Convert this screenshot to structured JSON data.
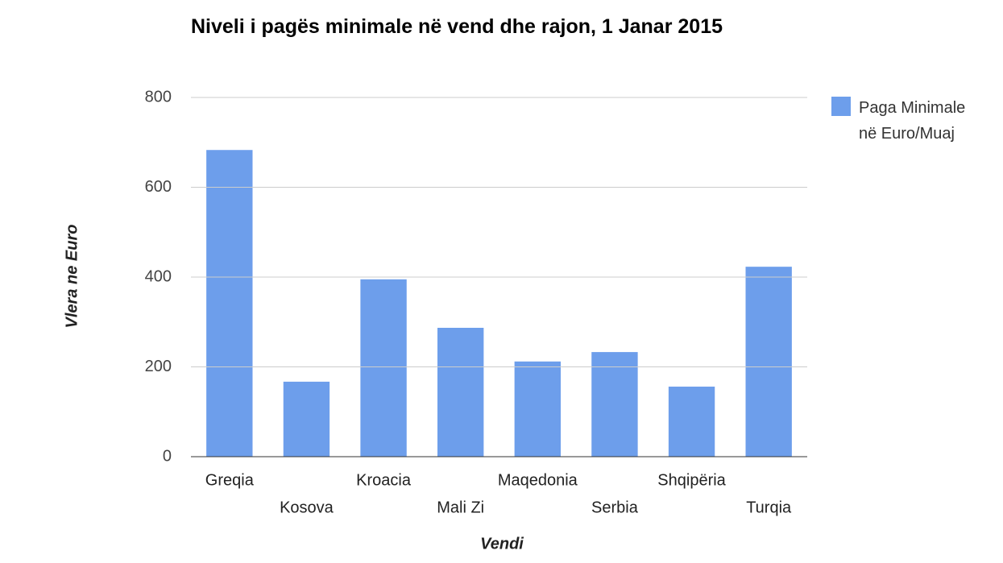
{
  "chart_data": {
    "type": "bar",
    "title": "Niveli i pagës minimale në vend dhe rajon, 1 Janar 2015",
    "x_label": "Vendi",
    "y_label": "Vlera ne Euro",
    "categories": [
      "Greqia",
      "Kosova",
      "Kroacia",
      "Mali Zi",
      "Maqedonia",
      "Serbia",
      "Shqipëria",
      "Turqia"
    ],
    "series": [
      {
        "name": "Paga Minimale në Euro/Muaj",
        "color": "#6d9eeb",
        "values": [
          683,
          167,
          395,
          287,
          212,
          233,
          156,
          423
        ]
      }
    ],
    "ylim": [
      0,
      800
    ],
    "yticks": [
      0,
      200,
      400,
      600,
      800
    ],
    "grid": true,
    "legend": "right"
  }
}
